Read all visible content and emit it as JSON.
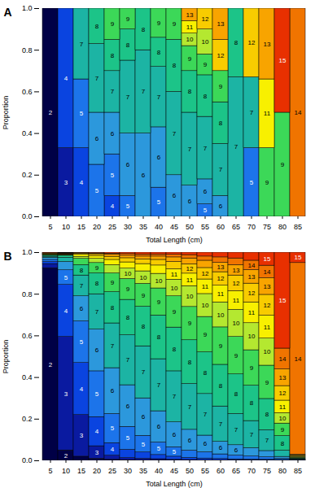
{
  "chart_data": [
    {
      "type": "bar",
      "title": "A",
      "x_label": "Total Length (cm)",
      "y_label": "Proportion",
      "stacked": true,
      "categories": [
        5,
        10,
        15,
        20,
        25,
        30,
        35,
        40,
        45,
        50,
        55,
        60,
        65,
        70,
        75,
        80,
        85
      ],
      "ylim": [
        0,
        1
      ],
      "yticks": [
        {
          "value": 0,
          "label": "0.0"
        },
        0.2,
        0.4,
        0.6,
        0.8,
        {
          "value": 1,
          "label": "1.0"
        }
      ],
      "series": [
        {
          "name": "2",
          "color": "#000046",
          "values": [
            1,
            0,
            0,
            0,
            0,
            0,
            0,
            0,
            0,
            0,
            0,
            0,
            0,
            0,
            0,
            0,
            0
          ]
        },
        {
          "name": "3",
          "color": "#0a1aa0",
          "values": [
            0,
            0.33,
            0,
            0,
            0,
            0,
            0,
            0,
            0,
            0,
            0,
            0,
            0,
            0,
            0,
            0,
            0
          ]
        },
        {
          "name": "4",
          "color": "#0a44e0",
          "values": [
            0,
            0.67,
            0.33,
            0,
            0.1,
            0,
            0,
            0,
            0,
            0,
            0,
            0,
            0,
            0,
            0,
            0,
            0
          ]
        },
        {
          "name": "5",
          "color": "#1c74ea",
          "values": [
            0,
            0,
            0.33,
            0.25,
            0.2,
            0.1,
            0,
            0.14,
            0,
            0,
            0.06,
            0,
            0,
            0.33,
            0,
            0,
            0
          ]
        },
        {
          "name": "6",
          "color": "#2c98dc",
          "values": [
            0,
            0,
            0,
            0.25,
            0.2,
            0.3,
            0.4,
            0.29,
            0.2,
            0.15,
            0.12,
            0.1,
            0,
            0,
            0,
            0,
            0
          ]
        },
        {
          "name": "7",
          "color": "#1cb4a4",
          "values": [
            0,
            0,
            0.34,
            0.33,
            0.2,
            0.35,
            0.4,
            0.29,
            0.4,
            0.35,
            0.3,
            0.25,
            0.67,
            0.34,
            0,
            0,
            0
          ]
        },
        {
          "name": "8",
          "color": "#1cc488",
          "values": [
            0,
            0,
            0,
            0.17,
            0.15,
            0.15,
            0.2,
            0.14,
            0.25,
            0.2,
            0.2,
            0.2,
            0.33,
            0,
            0,
            0,
            0
          ]
        },
        {
          "name": "9",
          "color": "#3cd858",
          "values": [
            0,
            0,
            0,
            0,
            0.15,
            0.1,
            0,
            0.14,
            0.15,
            0.12,
            0.1,
            0.15,
            0,
            0,
            0.33,
            0.5,
            0
          ]
        },
        {
          "name": "10",
          "color": "#b4e830",
          "values": [
            0,
            0,
            0,
            0,
            0,
            0,
            0,
            0,
            0,
            0.06,
            0.12,
            0,
            0,
            0,
            0,
            0,
            0
          ]
        },
        {
          "name": "11",
          "color": "#f8f000",
          "values": [
            0,
            0,
            0,
            0,
            0,
            0,
            0,
            0,
            0,
            0.06,
            0,
            0,
            0,
            0,
            0.33,
            0,
            0
          ]
        },
        {
          "name": "12",
          "color": "#f8cc00",
          "values": [
            0,
            0,
            0,
            0,
            0,
            0,
            0,
            0,
            0,
            0,
            0.1,
            0.15,
            0,
            0.33,
            0,
            0,
            0
          ]
        },
        {
          "name": "13",
          "color": "#f8a400",
          "values": [
            0,
            0,
            0,
            0,
            0,
            0,
            0,
            0,
            0,
            0.06,
            0,
            0.15,
            0,
            0,
            0.34,
            0,
            0
          ]
        },
        {
          "name": "14",
          "color": "#f07400",
          "values": [
            0,
            0,
            0,
            0,
            0,
            0,
            0,
            0,
            0,
            0,
            0,
            0,
            0,
            0,
            0,
            0,
            1
          ]
        },
        {
          "name": "15",
          "color": "#e83000",
          "values": [
            0,
            0,
            0,
            0,
            0,
            0,
            0,
            0,
            0,
            0,
            0,
            0,
            0,
            0,
            0,
            0.5,
            0
          ]
        }
      ]
    },
    {
      "type": "bar",
      "title": "B",
      "x_label": "Total Length (cm)",
      "y_label": "Proportion",
      "stacked": true,
      "categories": [
        5,
        10,
        15,
        20,
        25,
        30,
        35,
        40,
        45,
        50,
        55,
        60,
        65,
        70,
        75,
        80,
        85
      ],
      "ylim": [
        0,
        1
      ],
      "yticks": [
        {
          "value": 0,
          "label": "0.0"
        },
        0.2,
        0.4,
        0.6,
        0.8,
        {
          "value": 1,
          "label": "1.0"
        }
      ],
      "series": [
        {
          "name": "2",
          "color": "#000046",
          "values": [
            0.925,
            0.05,
            0.02,
            0.01,
            0.005,
            0.003,
            0.002,
            0.002,
            0.001,
            0.001,
            0.001,
            0.001,
            0.001,
            0.001,
            0.001,
            0.001,
            0.001
          ]
        },
        {
          "name": "3",
          "color": "#0a1aa0",
          "values": [
            0.02,
            0.545,
            0.2,
            0.06,
            0.02,
            0.01,
            0.008,
            0.006,
            0.004,
            0.003,
            0.002,
            0.002,
            0.001,
            0.001,
            0.001,
            0.001,
            0.001
          ]
        },
        {
          "name": "4",
          "color": "#0a44e0",
          "values": [
            0.01,
            0.25,
            0.25,
            0.14,
            0.06,
            0.04,
            0.03,
            0.02,
            0.015,
            0.01,
            0.008,
            0.006,
            0.005,
            0.004,
            0.003,
            0.002,
            0.001
          ]
        },
        {
          "name": "5",
          "color": "#1c74ea",
          "values": [
            0.01,
            0.07,
            0.2,
            0.22,
            0.14,
            0.11,
            0.08,
            0.06,
            0.045,
            0.035,
            0.03,
            0.022,
            0.018,
            0.015,
            0.012,
            0.005,
            0.001
          ]
        },
        {
          "name": "6",
          "color": "#2c98dc",
          "values": [
            0.01,
            0.04,
            0.12,
            0.2,
            0.22,
            0.2,
            0.18,
            0.15,
            0.12,
            0.1,
            0.08,
            0.06,
            0.05,
            0.04,
            0.03,
            0.01,
            0.002
          ]
        },
        {
          "name": "7",
          "color": "#1cb4a4",
          "values": [
            0.005,
            0.02,
            0.1,
            0.17,
            0.215,
            0.24,
            0.25,
            0.25,
            0.245,
            0.22,
            0.2,
            0.17,
            0.15,
            0.13,
            0.1,
            0.03,
            0.002
          ]
        },
        {
          "name": "8",
          "color": "#1cc488",
          "values": [
            0.005,
            0.01,
            0.05,
            0.1,
            0.15,
            0.17,
            0.19,
            0.21,
            0.21,
            0.21,
            0.2,
            0.2,
            0.19,
            0.17,
            0.15,
            0.07,
            0.003
          ]
        },
        {
          "name": "9",
          "color": "#3cd858",
          "values": [
            0.003,
            0.002,
            0.03,
            0.05,
            0.09,
            0.1,
            0.11,
            0.13,
            0.15,
            0.16,
            0.17,
            0.18,
            0.18,
            0.17,
            0.16,
            0.06,
            0.003
          ]
        },
        {
          "name": "10",
          "color": "#b4e830",
          "values": [
            0.002,
            0.002,
            0.01,
            0.02,
            0.04,
            0.05,
            0.06,
            0.07,
            0.08,
            0.1,
            0.11,
            0.12,
            0.13,
            0.13,
            0.13,
            0.05,
            0.004
          ]
        },
        {
          "name": "11",
          "color": "#f8f000",
          "values": [
            0.002,
            0.002,
            0.01,
            0.012,
            0.025,
            0.03,
            0.035,
            0.04,
            0.05,
            0.06,
            0.07,
            0.08,
            0.09,
            0.1,
            0.11,
            0.06,
            0.004
          ]
        },
        {
          "name": "12",
          "color": "#f8cc00",
          "values": [
            0.002,
            0.002,
            0.005,
            0.008,
            0.015,
            0.02,
            0.022,
            0.027,
            0.035,
            0.045,
            0.055,
            0.065,
            0.075,
            0.09,
            0.1,
            0.07,
            0.004
          ]
        },
        {
          "name": "13",
          "color": "#f8a400",
          "values": [
            0.002,
            0.002,
            0.003,
            0.005,
            0.01,
            0.012,
            0.014,
            0.016,
            0.022,
            0.028,
            0.035,
            0.045,
            0.05,
            0.065,
            0.08,
            0.08,
            0.004
          ]
        },
        {
          "name": "14",
          "color": "#f07400",
          "values": [
            0.002,
            0.002,
            0.001,
            0.003,
            0.005,
            0.008,
            0.01,
            0.01,
            0.013,
            0.016,
            0.02,
            0.026,
            0.032,
            0.045,
            0.06,
            0.1,
            0.92
          ]
        },
        {
          "name": "15",
          "color": "#e83000",
          "values": [
            0.002,
            0.002,
            0.001,
            0.002,
            0.005,
            0.007,
            0.009,
            0.009,
            0.01,
            0.012,
            0.019,
            0.023,
            0.028,
            0.039,
            0.063,
            0.461,
            0.05
          ]
        }
      ]
    }
  ]
}
